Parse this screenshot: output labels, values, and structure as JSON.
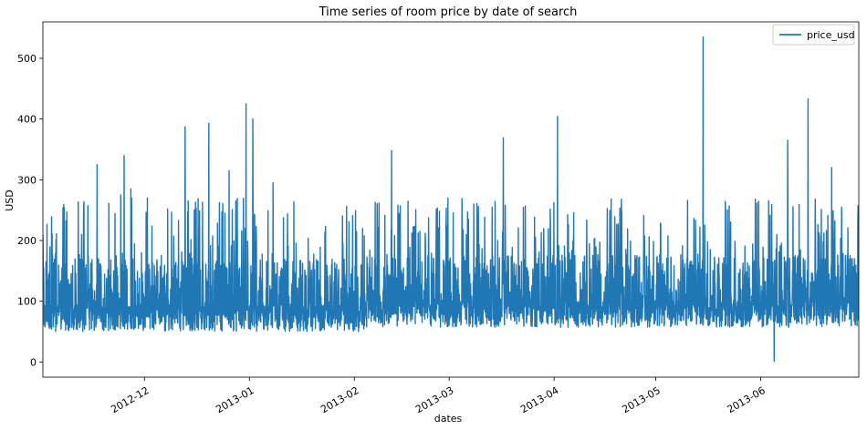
{
  "chart_data": {
    "type": "line",
    "title": "Time series of room price by date of search",
    "xlabel": "dates",
    "ylabel": "USD",
    "x_range": [
      "2012-11-01",
      "2013-06-30"
    ],
    "ylim": [
      -25,
      560
    ],
    "y_ticks": [
      0,
      100,
      200,
      300,
      400,
      500
    ],
    "x_ticks": [
      {
        "date": "2012-12-01",
        "label": "2012-12"
      },
      {
        "date": "2013-01-01",
        "label": "2013-01"
      },
      {
        "date": "2013-02-01",
        "label": "2013-02"
      },
      {
        "date": "2013-03-01",
        "label": "2013-03"
      },
      {
        "date": "2013-04-01",
        "label": "2013-04"
      },
      {
        "date": "2013-05-01",
        "label": "2013-05"
      },
      {
        "date": "2013-06-01",
        "label": "2013-06"
      }
    ],
    "legend": {
      "position": "top-right",
      "entries": [
        "price_usd"
      ]
    },
    "grid": false,
    "series": [
      {
        "name": "price_usd",
        "color": "#1f77b4",
        "typical_range": [
          40,
          250
        ],
        "peaks": [
          {
            "x": "2012-11-01",
            "y": 210
          },
          {
            "x": "2012-11-13",
            "y": 230
          },
          {
            "x": "2012-11-17",
            "y": 325
          },
          {
            "x": "2012-11-24",
            "y": 275
          },
          {
            "x": "2012-11-25",
            "y": 340
          },
          {
            "x": "2012-11-27",
            "y": 285
          },
          {
            "x": "2012-12-13",
            "y": 387
          },
          {
            "x": "2012-12-20",
            "y": 393
          },
          {
            "x": "2012-12-26",
            "y": 315
          },
          {
            "x": "2012-12-31",
            "y": 425
          },
          {
            "x": "2013-01-02",
            "y": 400
          },
          {
            "x": "2013-01-08",
            "y": 295
          },
          {
            "x": "2013-02-12",
            "y": 348
          },
          {
            "x": "2013-03-17",
            "y": 369
          },
          {
            "x": "2013-04-02",
            "y": 404
          },
          {
            "x": "2013-05-15",
            "y": 535
          },
          {
            "x": "2013-06-05",
            "y": 1
          },
          {
            "x": "2013-06-09",
            "y": 365
          },
          {
            "x": "2013-06-15",
            "y": 433
          },
          {
            "x": "2013-06-22",
            "y": 320
          }
        ]
      }
    ]
  }
}
